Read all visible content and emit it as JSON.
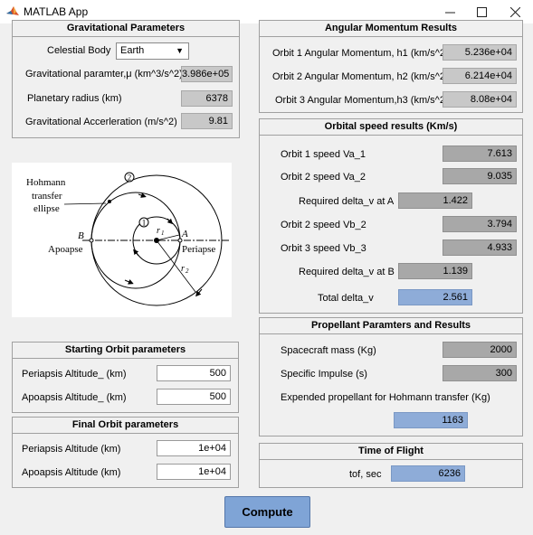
{
  "window": {
    "title": "MATLAB App"
  },
  "grav": {
    "title": "Gravitational Parameters",
    "body_label": "Celestial Body",
    "body_value": "Earth",
    "mu_label": "Gravitational paramter,μ (km^3/s^2)",
    "mu_value": "3.986e+05",
    "radius_label": "Planetary radius (km)",
    "radius_value": "6378",
    "accel_label": "Gravitational Accerleration  (m/s^2)",
    "accel_value": "9.81"
  },
  "diagram": {
    "hohmann_line1": "Hohmann",
    "hohmann_line2": "transfer",
    "hohmann_line3": "ellipse",
    "apoapse": "Apoapse",
    "periapse": "Periapse",
    "b": "B",
    "a": "A",
    "orbit1": "1",
    "orbit2": "2",
    "r1": "r",
    "r1_sub": "1",
    "r2": "r",
    "r2_sub": "2"
  },
  "start_orbit": {
    "title": "Starting Orbit parameters",
    "peri_label": "Periapsis Altitude_ (km)",
    "peri_value": "500",
    "apo_label": "Apoapsis Altitude_ (km)",
    "apo_value": "500"
  },
  "final_orbit": {
    "title": "Final Orbit parameters",
    "peri_label": "Periapsis Altitude (km)",
    "peri_value": "1e+04",
    "apo_label": "Apoapsis Altitude (km)",
    "apo_value": "1e+04"
  },
  "angmom": {
    "title": "Angular Momentum Results",
    "h1_label": "Orbit 1 Angular Momentum, h1 (km/s^2)",
    "h1_value": "5.236e+04",
    "h2_label": "Orbit 2 Angular Momentum, h2 (km/s^2)",
    "h2_value": "6.214e+04",
    "h3_label": "Orbit 3 Angular Momentum,h3 (km/s^2)",
    "h3_value": "8.08e+04"
  },
  "speed": {
    "title": "Orbital speed results (Km/s)",
    "va1_label": "Orbit  1 speed Va_1",
    "va1_value": "7.613",
    "va2_label": "Orbit 2 speed Va_2",
    "va2_value": "9.035",
    "dva_label": "Required delta_v at  A",
    "dva_value": "1.422",
    "vb2_label": "Orbit  2 speed Vb_2",
    "vb2_value": "3.794",
    "vb3_label": "Orbit 3 speed Vb_3",
    "vb3_value": "4.933",
    "dvb_label": "Required delta_v at  B",
    "dvb_value": "1.139",
    "total_label": "Total delta_v",
    "total_value": "2.561"
  },
  "prop": {
    "title": "Propellant Paramters and Results",
    "mass_label": "Spacecraft mass (Kg)",
    "mass_value": "2000",
    "isp_label": "Specific Impulse (s)",
    "isp_value": "300",
    "expended_label": "Expended propellant for Hohmann transfer (Kg)",
    "expended_value": "1163"
  },
  "tof": {
    "title": "Time of Flight",
    "label": "tof, sec",
    "value": "6236"
  },
  "compute_label": "Compute",
  "colors": {
    "accent_blue": "#8eacd8",
    "button_blue": "#7fa4d6"
  }
}
